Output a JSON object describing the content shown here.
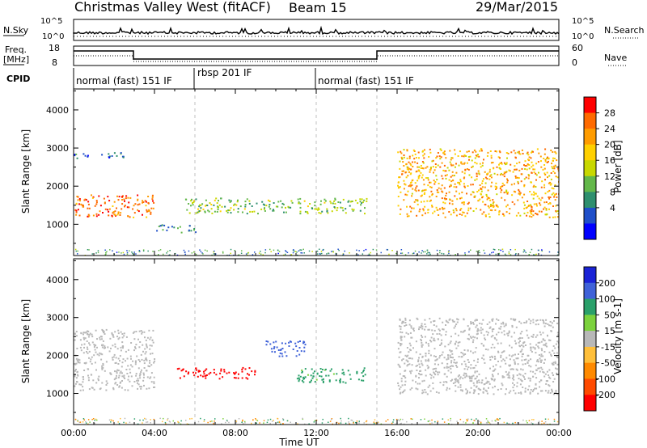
{
  "header": {
    "title": "Christmas Valley West (fitACF)",
    "beam": "Beam 15",
    "date": "29/Mar/2015"
  },
  "top_panels": {
    "nsky_label": "N.Sky",
    "nsky_ticks": [
      "10^5",
      "10^0"
    ],
    "nsearch_label": "N.Search",
    "nsearch_ticks": [
      "10^5",
      "10^0"
    ],
    "freq_label_1": "Freq.",
    "freq_label_2": "[MHz]",
    "freq_ticks": [
      "18",
      "8"
    ],
    "nave_label": "Nave",
    "nave_ticks": [
      "60",
      "0"
    ],
    "cpid_label": "CPID",
    "cpid_segments": [
      {
        "label": "normal (fast) 151 IF",
        "start_h": 0,
        "end_h": 6
      },
      {
        "label": "rbsp 201 IF",
        "start_h": 6,
        "end_h": 12
      },
      {
        "label": "normal (fast) 151 IF",
        "start_h": 12,
        "end_h": 24
      }
    ]
  },
  "chart_data": [
    {
      "type": "heatmap",
      "title": "",
      "quantity": "Power",
      "xlabel": "Time UT",
      "ylabel": "Slant Range [km]",
      "xlim": [
        0,
        24
      ],
      "ylim": [
        180,
        4550
      ],
      "x_ticks": [
        "00:00",
        "04:00",
        "08:00",
        "12:00",
        "16:00",
        "20:00",
        "00:00"
      ],
      "y_ticks": [
        "1000",
        "2000",
        "3000",
        "4000"
      ],
      "colorbar": {
        "label": "Power [dB]",
        "ticks": [
          "28",
          "24",
          "20",
          "16",
          "12",
          "8",
          "4"
        ],
        "colors": [
          "#ff0000",
          "#ff6a00",
          "#ff9c00",
          "#ffd000",
          "#c8d800",
          "#63b84a",
          "#2e8f6e",
          "#1f4fc9",
          "#0000ff"
        ]
      },
      "features": [
        {
          "name": "main echo band",
          "time_h": [
            0,
            4
          ],
          "range_km": [
            1200,
            1800
          ],
          "value": 26
        },
        {
          "name": "band",
          "time_h": [
            5.5,
            14.5
          ],
          "range_km": [
            1300,
            1700
          ],
          "value": 14
        },
        {
          "name": "band",
          "time_h": [
            16,
            24
          ],
          "range_km": [
            1200,
            3000
          ],
          "value": 22
        },
        {
          "name": "upper echoes",
          "time_h": [
            0,
            2.5
          ],
          "range_km": [
            2750,
            2900
          ],
          "value": 8
        },
        {
          "name": "low patch",
          "time_h": [
            4,
            6
          ],
          "range_km": [
            800,
            1000
          ],
          "value": 10
        }
      ]
    },
    {
      "type": "heatmap",
      "title": "",
      "quantity": "Velocity",
      "xlabel": "Time UT",
      "ylabel": "Slant Range [km]",
      "xlim": [
        0,
        24
      ],
      "ylim": [
        180,
        4550
      ],
      "x_ticks": [
        "00:00",
        "04:00",
        "08:00",
        "12:00",
        "16:00",
        "20:00",
        "00:00"
      ],
      "y_ticks": [
        "1000",
        "2000",
        "3000",
        "4000"
      ],
      "colorbar": {
        "label": "Velocity [m s-1]",
        "ticks": [
          "200",
          "100",
          "50",
          "15",
          "-15",
          "-50",
          "-100",
          "-200"
        ],
        "colors": [
          "#1a23d6",
          "#3f62d8",
          "#2aa06a",
          "#7cd23d",
          "#b8b8b8",
          "#ffbf3a",
          "#ff8a00",
          "#ff4a00",
          "#ff0000"
        ]
      },
      "features": [
        {
          "name": "ground scatter",
          "time_h": [
            0,
            4
          ],
          "range_km": [
            1100,
            2700
          ],
          "value": 0
        },
        {
          "name": "red band",
          "time_h": [
            5,
            9
          ],
          "range_km": [
            1400,
            1700
          ],
          "value": -200
        },
        {
          "name": "green band",
          "time_h": [
            11,
            14.5
          ],
          "range_km": [
            1300,
            1700
          ],
          "value": 50
        },
        {
          "name": "ground scatter",
          "time_h": [
            16,
            24
          ],
          "range_km": [
            1000,
            3000
          ],
          "value": 0
        },
        {
          "name": "blue patch",
          "time_h": [
            9.5,
            11.5
          ],
          "range_km": [
            2000,
            2400
          ],
          "value": 150
        }
      ]
    }
  ]
}
